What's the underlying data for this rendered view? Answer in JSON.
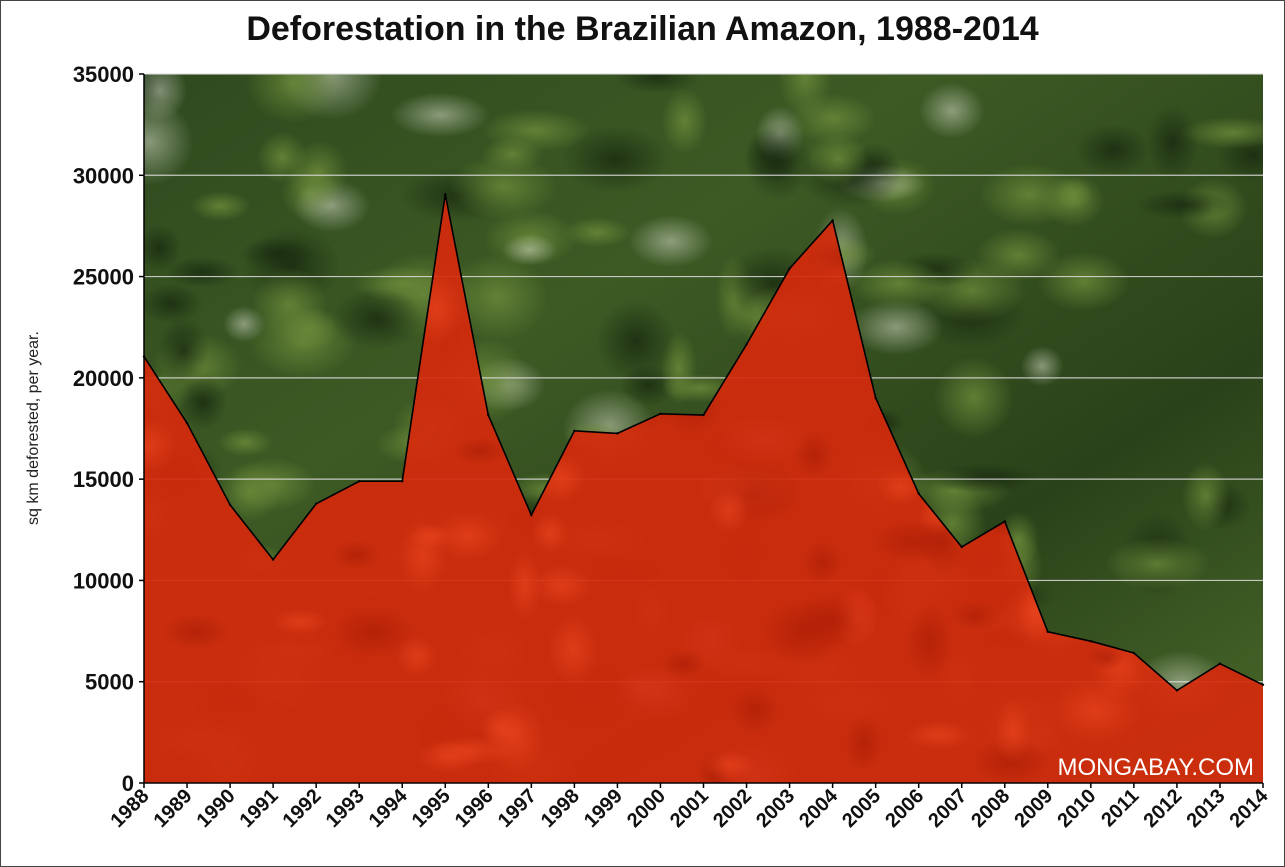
{
  "chart_data": {
    "type": "area",
    "title": "Deforestation in the Brazilian Amazon, 1988-2014",
    "xlabel": "",
    "ylabel": "sq km deforested, per year.",
    "watermark": "MONGABAY.COM",
    "ylim": [
      0,
      35000
    ],
    "yticks": [
      "0",
      "5000",
      "10000",
      "15000",
      "20000",
      "25000",
      "30000",
      "35000"
    ],
    "x": [
      "1988",
      "1989",
      "1990",
      "1991",
      "1992",
      "1993",
      "1994",
      "1995",
      "1996",
      "1997",
      "1998",
      "1999",
      "2000",
      "2001",
      "2002",
      "2003",
      "2004",
      "2005",
      "2006",
      "2007",
      "2008",
      "2009",
      "2010",
      "2011",
      "2012",
      "2013",
      "2014"
    ],
    "values": [
      21050,
      17770,
      13730,
      11030,
      13786,
      14896,
      14896,
      29059,
      18161,
      13227,
      17383,
      17259,
      18226,
      18165,
      21651,
      25396,
      27772,
      19014,
      14286,
      11651,
      12911,
      7464,
      7000,
      6418,
      4571,
      5891,
      4848
    ],
    "grid": true,
    "colors": {
      "area_fill": "#d42a0c",
      "area_line": "#000000",
      "gridline": "#dddddd"
    }
  }
}
